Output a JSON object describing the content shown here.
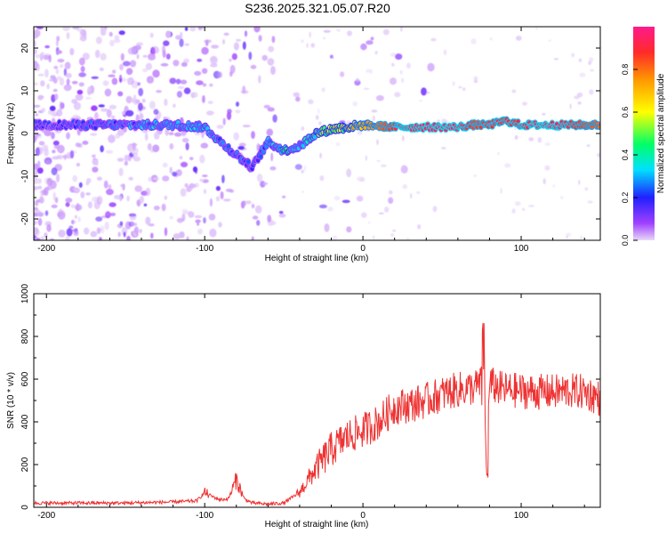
{
  "title": "S236.2025.321.05.07.R20",
  "chart_data": [
    {
      "type": "heatmap",
      "xlabel": "Height of straight line (km)",
      "ylabel": "Frequency (Hz)",
      "xlim": [
        -208,
        150
      ],
      "ylim": [
        -25,
        25
      ],
      "xticks": [
        -200,
        -100,
        0,
        100
      ],
      "yticks": [
        -20,
        -10,
        0,
        10,
        20
      ],
      "colorbar": {
        "label": "Normalized spectral amplitude",
        "range": [
          0,
          1
        ],
        "ticks": [
          0,
          0.2,
          0.4,
          0.6,
          0.8
        ]
      },
      "ridge": {
        "x": [
          -200,
          -180,
          -160,
          -140,
          -120,
          -100,
          -90,
          -80,
          -70,
          -60,
          -50,
          -40,
          -30,
          -20,
          -10,
          0,
          20,
          40,
          60,
          70,
          80,
          90,
          100,
          110,
          120,
          130,
          140,
          150
        ],
        "freq": [
          2,
          2,
          2,
          2,
          2,
          1.5,
          -2,
          -5,
          -8,
          -2,
          -4,
          -3,
          0,
          1,
          1.5,
          2,
          1.5,
          1.5,
          1.5,
          2,
          2,
          3,
          2,
          2,
          2,
          2,
          2,
          2
        ],
        "amp": [
          0.2,
          0.22,
          0.25,
          0.3,
          0.35,
          0.35,
          0.3,
          0.25,
          0.2,
          0.3,
          0.4,
          0.35,
          0.45,
          0.6,
          0.65,
          0.7,
          0.9,
          0.95,
          0.95,
          0.85,
          0.9,
          0.9,
          0.9,
          0.95,
          0.95,
          0.9,
          0.85,
          0.8
        ]
      }
    },
    {
      "type": "line",
      "xlabel": "Height of straight line (km)",
      "ylabel": "SNR (10 * v/v)",
      "xlim": [
        -208,
        150
      ],
      "ylim": [
        0,
        1000
      ],
      "xticks": [
        -200,
        -100,
        0,
        100
      ],
      "yticks": [
        0,
        200,
        400,
        600,
        800,
        1000
      ],
      "series": [
        {
          "name": "SNR",
          "color": "#ee3333",
          "x": [
            -208,
            -180,
            -150,
            -120,
            -105,
            -100,
            -95,
            -90,
            -85,
            -80,
            -75,
            -70,
            -60,
            -50,
            -40,
            -30,
            -20,
            -10,
            0,
            10,
            20,
            30,
            40,
            50,
            60,
            70,
            75,
            76,
            78,
            80,
            85,
            90,
            100,
            110,
            120,
            130,
            140,
            150
          ],
          "y": [
            20,
            20,
            20,
            25,
            30,
            70,
            50,
            35,
            40,
            130,
            40,
            20,
            15,
            20,
            70,
            180,
            270,
            330,
            360,
            400,
            470,
            480,
            500,
            530,
            550,
            560,
            580,
            900,
            100,
            580,
            560,
            550,
            545,
            540,
            540,
            545,
            540,
            510
          ]
        }
      ]
    }
  ]
}
